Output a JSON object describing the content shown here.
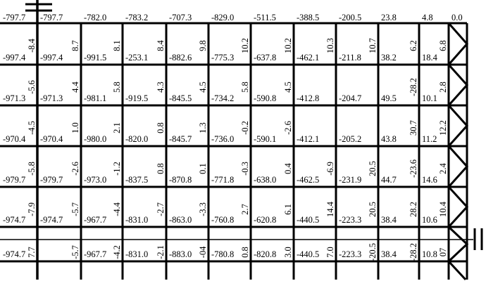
{
  "diagram": {
    "line_color": "#000000",
    "top_row": [
      "-797.7",
      "-797.7",
      "-782.0",
      "-783.2",
      "-707.3",
      "-829.0",
      "-511.5",
      "-388.5",
      "-200.5",
      "23.8",
      "4.8",
      "0.0"
    ],
    "rows": [
      [
        [
          "-997.4",
          "-8.4"
        ],
        [
          "-997.4",
          "8.7"
        ],
        [
          "-991.5",
          "8.1"
        ],
        [
          "-253.1",
          "8.4"
        ],
        [
          "-882.6",
          "9.8"
        ],
        [
          "-775.3",
          "10.2"
        ],
        [
          "-637.8",
          "10.2"
        ],
        [
          "-462.1",
          "10.3"
        ],
        [
          "-211.8",
          "10.7"
        ],
        [
          "38.2",
          "6.2"
        ],
        [
          "18.4",
          "6.8"
        ]
      ],
      [
        [
          "-971.3",
          "-5.6"
        ],
        [
          "-971.3",
          "4.4"
        ],
        [
          "-981.1",
          "5.8"
        ],
        [
          "-919.5",
          "4.3"
        ],
        [
          "-845.5",
          "4.5"
        ],
        [
          "-734.2",
          "5.8"
        ],
        [
          "-590.8",
          "4.5"
        ],
        [
          "-412.8",
          ""
        ],
        [
          "-204.7",
          ""
        ],
        [
          "49.5",
          "-28.2"
        ],
        [
          "10.1",
          "2.8"
        ]
      ],
      [
        [
          "-970.4",
          "-4.5"
        ],
        [
          "-970.4",
          "1.0"
        ],
        [
          "-980.0",
          "2.1"
        ],
        [
          "-820.0",
          "0.8"
        ],
        [
          "-845.7",
          "1.3"
        ],
        [
          "-736.0",
          "-0.2"
        ],
        [
          "-590.1",
          "-2.6"
        ],
        [
          "-412.1",
          ""
        ],
        [
          "-205.2",
          ""
        ],
        [
          "43.8",
          "30.7"
        ],
        [
          "11.2",
          "12.2"
        ]
      ],
      [
        [
          "-979.7",
          "-5.8"
        ],
        [
          "-979.7",
          "-2.6"
        ],
        [
          "-973.0",
          "-1.2"
        ],
        [
          "-837.5",
          "0.8"
        ],
        [
          "-870.8",
          "0.1"
        ],
        [
          "-771.8",
          "-0.3"
        ],
        [
          "-638.0",
          "0.4"
        ],
        [
          "-462.5",
          "-6.9"
        ],
        [
          "-231.9",
          "20.5"
        ],
        [
          "44.7",
          "-23.6"
        ],
        [
          "14.6",
          "2.4"
        ]
      ],
      [
        [
          "-974.7",
          "-7.9"
        ],
        [
          "-974.7",
          "-5.7"
        ],
        [
          "-967.7",
          "-4.4"
        ],
        [
          "-831.0",
          "-2.7"
        ],
        [
          "-863.0",
          "-3.3"
        ],
        [
          "-760.8",
          "2.7"
        ],
        [
          "-620.8",
          "6.1"
        ],
        [
          "-440.5",
          "14.4"
        ],
        [
          "-223.3",
          "20.5"
        ],
        [
          "38.4",
          "28.2"
        ],
        [
          "10.6",
          "10.4"
        ]
      ],
      [
        [
          "-974.7",
          "7.7"
        ],
        [
          "",
          "-5.7"
        ],
        [
          "-967.7",
          "-4.2"
        ],
        [
          "-831.0",
          "-2.1"
        ],
        [
          "-883.0",
          "-04"
        ],
        [
          "-780.8",
          "0.8"
        ],
        [
          "-820.8",
          "3.0"
        ],
        [
          "-440.5",
          "7.0"
        ],
        [
          "-223.3",
          "-20.5"
        ],
        [
          "38.4",
          "-28.2"
        ],
        [
          "10.8",
          "07"
        ]
      ]
    ]
  }
}
